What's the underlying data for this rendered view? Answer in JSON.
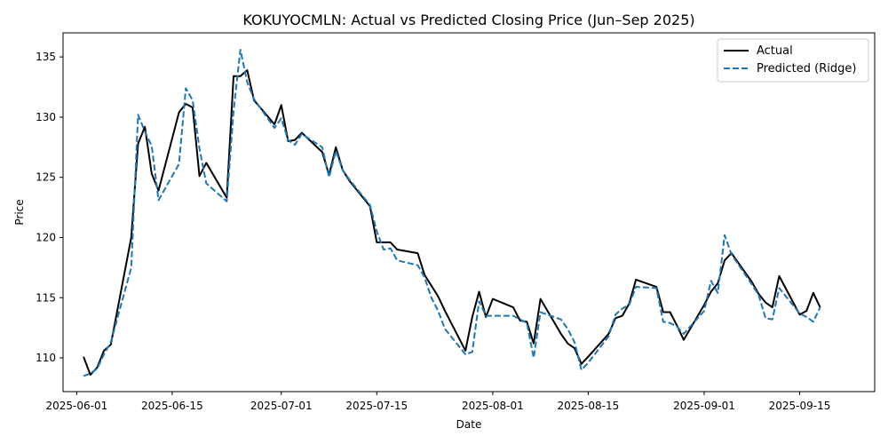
{
  "chart_data": {
    "type": "line",
    "title": "KOKUYOCMLN: Actual vs Predicted Closing Price (Jun–Sep 2025)",
    "xlabel": "Date",
    "ylabel": "Price",
    "xlim": [
      "2025-05-30",
      "2025-09-26"
    ],
    "ylim": [
      107.2,
      137.0
    ],
    "x_ticks": [
      "2025-06-01",
      "2025-06-15",
      "2025-07-01",
      "2025-07-15",
      "2025-08-01",
      "2025-08-15",
      "2025-09-01",
      "2025-09-15"
    ],
    "y_ticks": [
      110,
      115,
      120,
      125,
      130,
      135
    ],
    "grid": false,
    "legend_position": "top-right",
    "x": [
      "2025-06-02",
      "2025-06-03",
      "2025-06-04",
      "2025-06-05",
      "2025-06-06",
      "2025-06-09",
      "2025-06-10",
      "2025-06-11",
      "2025-06-12",
      "2025-06-13",
      "2025-06-16",
      "2025-06-17",
      "2025-06-18",
      "2025-06-19",
      "2025-06-20",
      "2025-06-23",
      "2025-06-24",
      "2025-06-25",
      "2025-06-26",
      "2025-06-27",
      "2025-06-30",
      "2025-07-01",
      "2025-07-02",
      "2025-07-03",
      "2025-07-04",
      "2025-07-07",
      "2025-07-08",
      "2025-07-09",
      "2025-07-10",
      "2025-07-11",
      "2025-07-14",
      "2025-07-15",
      "2025-07-16",
      "2025-07-17",
      "2025-07-18",
      "2025-07-21",
      "2025-07-22",
      "2025-07-23",
      "2025-07-24",
      "2025-07-25",
      "2025-07-28",
      "2025-07-29",
      "2025-07-30",
      "2025-07-31",
      "2025-08-01",
      "2025-08-04",
      "2025-08-05",
      "2025-08-06",
      "2025-08-07",
      "2025-08-08",
      "2025-08-11",
      "2025-08-12",
      "2025-08-13",
      "2025-08-14",
      "2025-08-15",
      "2025-08-18",
      "2025-08-19",
      "2025-08-20",
      "2025-08-21",
      "2025-08-22",
      "2025-08-25",
      "2025-08-26",
      "2025-08-27",
      "2025-08-28",
      "2025-08-29",
      "2025-09-01",
      "2025-09-02",
      "2025-09-03",
      "2025-09-04",
      "2025-09-05",
      "2025-09-08",
      "2025-09-09",
      "2025-09-10",
      "2025-09-11",
      "2025-09-12",
      "2025-09-15",
      "2025-09-16",
      "2025-09-17",
      "2025-09-18"
    ],
    "series": [
      {
        "name": "Actual",
        "color": "#000000",
        "style": "solid",
        "values": [
          110.1,
          108.6,
          109.2,
          110.6,
          111.1,
          120.0,
          127.8,
          129.2,
          125.3,
          123.9,
          130.4,
          131.1,
          130.8,
          125.1,
          126.2,
          123.3,
          133.4,
          133.4,
          133.9,
          131.4,
          129.4,
          131.0,
          128.0,
          128.1,
          128.7,
          127.1,
          125.2,
          127.5,
          125.6,
          124.7,
          122.6,
          119.6,
          119.6,
          119.6,
          119.0,
          118.7,
          116.9,
          116.0,
          115.1,
          113.9,
          110.6,
          113.4,
          115.5,
          113.4,
          114.9,
          114.2,
          113.1,
          113.0,
          111.2,
          114.9,
          112.0,
          111.2,
          110.8,
          109.5,
          110.1,
          112.0,
          113.3,
          113.5,
          114.5,
          116.5,
          115.9,
          113.8,
          113.8,
          112.7,
          111.5,
          114.4,
          115.5,
          116.2,
          118.1,
          118.7,
          116.3,
          115.3,
          114.6,
          114.2,
          116.8,
          113.6,
          113.9,
          115.4,
          114.2
        ]
      },
      {
        "name": "Predicted (Ridge)",
        "color": "#1f77b4",
        "style": "dashed",
        "values": [
          108.5,
          108.7,
          109.1,
          110.3,
          111.3,
          117.5,
          130.2,
          128.8,
          127.6,
          123.1,
          126.1,
          132.4,
          131.4,
          127.4,
          124.5,
          123.0,
          130.5,
          135.6,
          132.9,
          131.5,
          129.1,
          129.9,
          128.1,
          127.7,
          128.6,
          127.5,
          125.0,
          127.2,
          125.6,
          124.8,
          122.7,
          120.5,
          119.0,
          119.1,
          118.1,
          117.7,
          116.7,
          115.0,
          113.9,
          112.4,
          110.3,
          110.5,
          114.7,
          113.5,
          113.5,
          113.5,
          113.2,
          112.9,
          110.0,
          113.8,
          113.2,
          112.4,
          111.3,
          109.0,
          109.6,
          111.8,
          113.6,
          114.1,
          114.4,
          115.9,
          115.8,
          113.0,
          112.9,
          112.6,
          112.0,
          113.9,
          116.4,
          115.4,
          120.2,
          118.6,
          116.1,
          115.2,
          113.3,
          113.2,
          115.8,
          113.7,
          113.4,
          113.0,
          114.2
        ]
      }
    ]
  }
}
